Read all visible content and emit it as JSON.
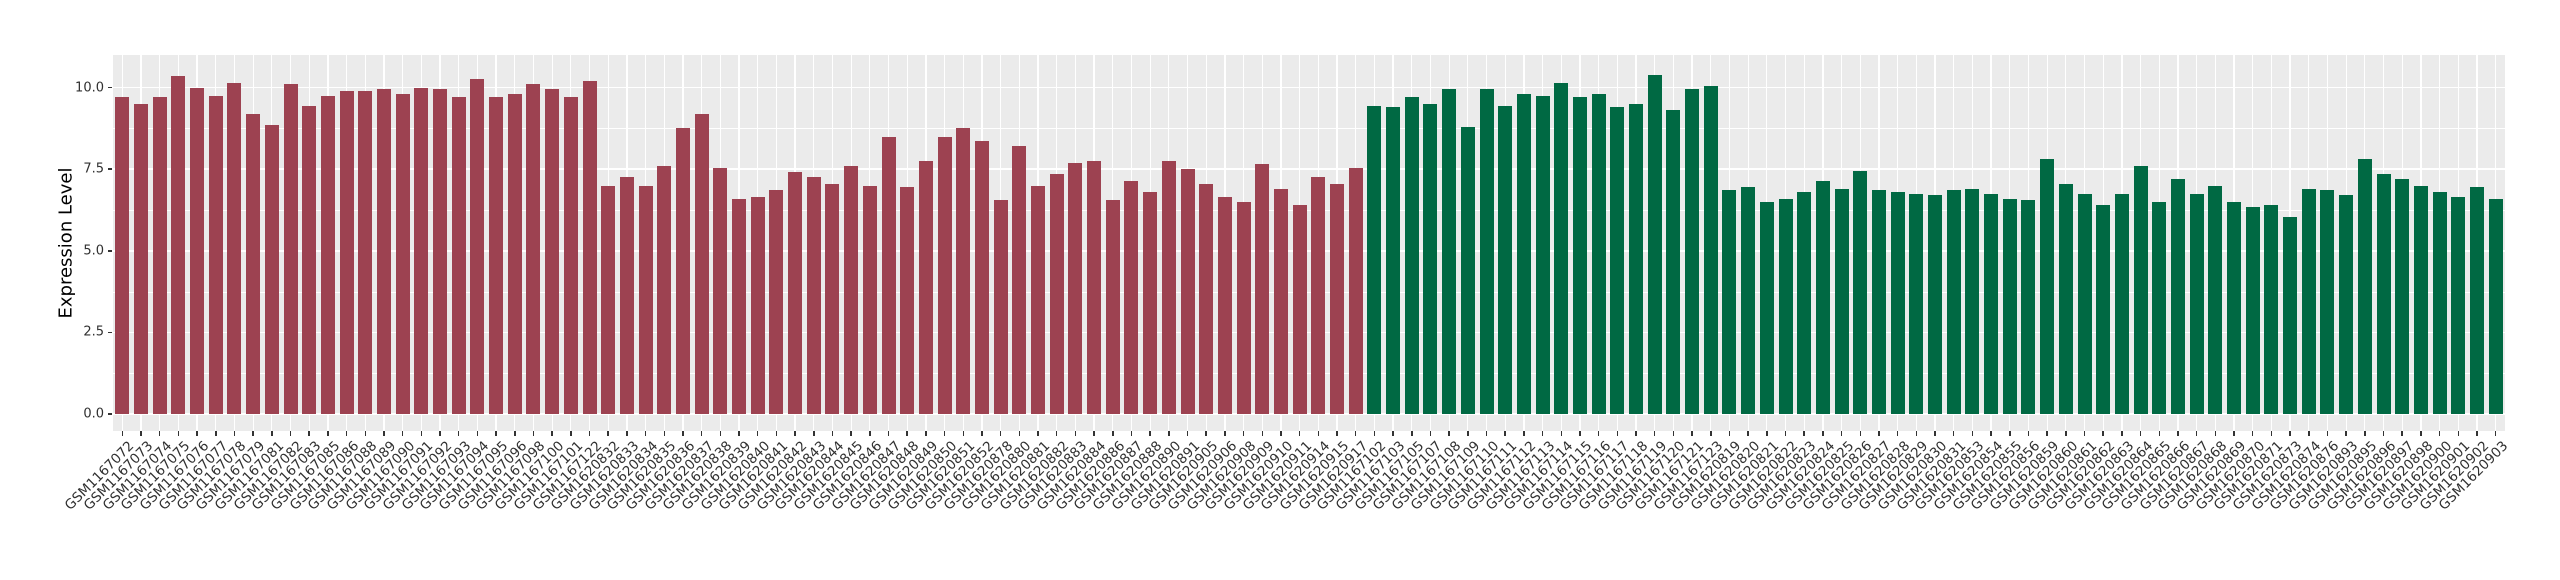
{
  "chart_data": {
    "type": "bar",
    "title": "",
    "xlabel": "",
    "ylabel": "Expression Level",
    "ylim": [
      0,
      11.0
    ],
    "y_tick_values": [
      0,
      2.5,
      5,
      7.5,
      10
    ],
    "y_tick_labels": [
      "0.0",
      "2.5",
      "5.0",
      "7.5",
      "10.0"
    ],
    "y_minor_tick_values": [
      1.25,
      3.75,
      6.25,
      8.75
    ],
    "grid": true,
    "legend_position": "none",
    "panel_background": "#EBEBEB",
    "grid_color": "#FFFFFF",
    "bar_colors": [
      "#9D4251",
      "#006943"
    ],
    "samples": [
      [
        "GSM1167072",
        9.7,
        0
      ],
      [
        "GSM1167073",
        9.5,
        0
      ],
      [
        "GSM1167074",
        9.7,
        0
      ],
      [
        "GSM1167075",
        10.35,
        0
      ],
      [
        "GSM1167076",
        10.0,
        0
      ],
      [
        "GSM1167077",
        9.75,
        0
      ],
      [
        "GSM1167078",
        10.15,
        0
      ],
      [
        "GSM1167079",
        9.2,
        0
      ],
      [
        "GSM1167081",
        8.85,
        0
      ],
      [
        "GSM1167082",
        10.1,
        0
      ],
      [
        "GSM1167083",
        9.45,
        0
      ],
      [
        "GSM1167085",
        9.75,
        0
      ],
      [
        "GSM1167086",
        9.9,
        0
      ],
      [
        "GSM1167088",
        9.9,
        0
      ],
      [
        "GSM1167089",
        9.95,
        0
      ],
      [
        "GSM1167090",
        9.8,
        0
      ],
      [
        "GSM1167091",
        10.0,
        0
      ],
      [
        "GSM1167092",
        9.95,
        0
      ],
      [
        "GSM1167093",
        9.7,
        0
      ],
      [
        "GSM1167094",
        10.25,
        0
      ],
      [
        "GSM1167095",
        9.7,
        0
      ],
      [
        "GSM1167096",
        9.8,
        0
      ],
      [
        "GSM1167098",
        10.1,
        0
      ],
      [
        "GSM1167100",
        9.95,
        0
      ],
      [
        "GSM1167101",
        9.7,
        0
      ],
      [
        "GSM1167122",
        10.2,
        0
      ],
      [
        "GSM1620832",
        7.0,
        0
      ],
      [
        "GSM1620833",
        7.25,
        0
      ],
      [
        "GSM1620834",
        7.0,
        0
      ],
      [
        "GSM1620835",
        7.6,
        0
      ],
      [
        "GSM1620836",
        8.75,
        0
      ],
      [
        "GSM1620837",
        9.2,
        0
      ],
      [
        "GSM1620838",
        7.55,
        0
      ],
      [
        "GSM1620839",
        6.6,
        0
      ],
      [
        "GSM1620840",
        6.65,
        0
      ],
      [
        "GSM1620841",
        6.85,
        0
      ],
      [
        "GSM1620842",
        7.4,
        0
      ],
      [
        "GSM1620843",
        7.25,
        0
      ],
      [
        "GSM1620844",
        7.05,
        0
      ],
      [
        "GSM1620845",
        7.6,
        0
      ],
      [
        "GSM1620846",
        7.0,
        0
      ],
      [
        "GSM1620847",
        8.5,
        0
      ],
      [
        "GSM1620848",
        6.95,
        0
      ],
      [
        "GSM1620849",
        7.75,
        0
      ],
      [
        "GSM1620850",
        8.5,
        0
      ],
      [
        "GSM1620851",
        8.75,
        0
      ],
      [
        "GSM1620852",
        8.35,
        0
      ],
      [
        "GSM1620878",
        6.55,
        0
      ],
      [
        "GSM1620880",
        8.2,
        0
      ],
      [
        "GSM1620881",
        7.0,
        0
      ],
      [
        "GSM1620882",
        7.35,
        0
      ],
      [
        "GSM1620883",
        7.7,
        0
      ],
      [
        "GSM1620884",
        7.75,
        0
      ],
      [
        "GSM1620886",
        6.55,
        0
      ],
      [
        "GSM1620887",
        7.15,
        0
      ],
      [
        "GSM1620888",
        6.8,
        0
      ],
      [
        "GSM1620890",
        7.75,
        0
      ],
      [
        "GSM1620891",
        7.5,
        0
      ],
      [
        "GSM1620905",
        7.05,
        0
      ],
      [
        "GSM1620906",
        6.65,
        0
      ],
      [
        "GSM1620908",
        6.5,
        0
      ],
      [
        "GSM1620909",
        7.65,
        0
      ],
      [
        "GSM1620910",
        6.9,
        0
      ],
      [
        "GSM1620911",
        6.4,
        0
      ],
      [
        "GSM1620914",
        7.25,
        0
      ],
      [
        "GSM1620915",
        7.05,
        0
      ],
      [
        "GSM1620917",
        7.55,
        0
      ],
      [
        "GSM1167102",
        9.45,
        1
      ],
      [
        "GSM1167103",
        9.4,
        1
      ],
      [
        "GSM1167105",
        9.7,
        1
      ],
      [
        "GSM1167107",
        9.5,
        1
      ],
      [
        "GSM1167108",
        9.95,
        1
      ],
      [
        "GSM1167109",
        8.8,
        1
      ],
      [
        "GSM1167110",
        9.95,
        1
      ],
      [
        "GSM1167111",
        9.45,
        1
      ],
      [
        "GSM1167112",
        9.8,
        1
      ],
      [
        "GSM1167113",
        9.75,
        1
      ],
      [
        "GSM1167114",
        10.15,
        1
      ],
      [
        "GSM1167115",
        9.7,
        1
      ],
      [
        "GSM1167116",
        9.8,
        1
      ],
      [
        "GSM1167117",
        9.4,
        1
      ],
      [
        "GSM1167118",
        9.5,
        1
      ],
      [
        "GSM1167119",
        10.4,
        1
      ],
      [
        "GSM1167120",
        9.3,
        1
      ],
      [
        "GSM1167121",
        9.95,
        1
      ],
      [
        "GSM1167123",
        10.05,
        1
      ],
      [
        "GSM1620819",
        6.85,
        1
      ],
      [
        "GSM1620820",
        6.95,
        1
      ],
      [
        "GSM1620821",
        6.5,
        1
      ],
      [
        "GSM1620822",
        6.6,
        1
      ],
      [
        "GSM1620823",
        6.8,
        1
      ],
      [
        "GSM1620824",
        7.15,
        1
      ],
      [
        "GSM1620825",
        6.9,
        1
      ],
      [
        "GSM1620826",
        7.45,
        1
      ],
      [
        "GSM1620827",
        6.85,
        1
      ],
      [
        "GSM1620828",
        6.8,
        1
      ],
      [
        "GSM1620829",
        6.75,
        1
      ],
      [
        "GSM1620830",
        6.7,
        1
      ],
      [
        "GSM1620831",
        6.85,
        1
      ],
      [
        "GSM1620853",
        6.9,
        1
      ],
      [
        "GSM1620854",
        6.75,
        1
      ],
      [
        "GSM1620855",
        6.6,
        1
      ],
      [
        "GSM1620856",
        6.55,
        1
      ],
      [
        "GSM1620859",
        7.8,
        1
      ],
      [
        "GSM1620860",
        7.05,
        1
      ],
      [
        "GSM1620861",
        6.75,
        1
      ],
      [
        "GSM1620862",
        6.4,
        1
      ],
      [
        "GSM1620863",
        6.75,
        1
      ],
      [
        "GSM1620864",
        7.6,
        1
      ],
      [
        "GSM1620865",
        6.5,
        1
      ],
      [
        "GSM1620866",
        7.2,
        1
      ],
      [
        "GSM1620867",
        6.75,
        1
      ],
      [
        "GSM1620868",
        7.0,
        1
      ],
      [
        "GSM1620869",
        6.5,
        1
      ],
      [
        "GSM1620870",
        6.35,
        1
      ],
      [
        "GSM1620871",
        6.4,
        1
      ],
      [
        "GSM1620873",
        6.05,
        1
      ],
      [
        "GSM1620874",
        6.9,
        1
      ],
      [
        "GSM1620876",
        6.85,
        1
      ],
      [
        "GSM1620893",
        6.7,
        1
      ],
      [
        "GSM1620895",
        7.8,
        1
      ],
      [
        "GSM1620896",
        7.35,
        1
      ],
      [
        "GSM1620897",
        7.2,
        1
      ],
      [
        "GSM1620898",
        7.0,
        1
      ],
      [
        "GSM1620900",
        6.8,
        1
      ],
      [
        "GSM1620901",
        6.65,
        1
      ],
      [
        "GSM1620902",
        6.95,
        1
      ],
      [
        "GSM1620903",
        6.6,
        1
      ]
    ]
  }
}
